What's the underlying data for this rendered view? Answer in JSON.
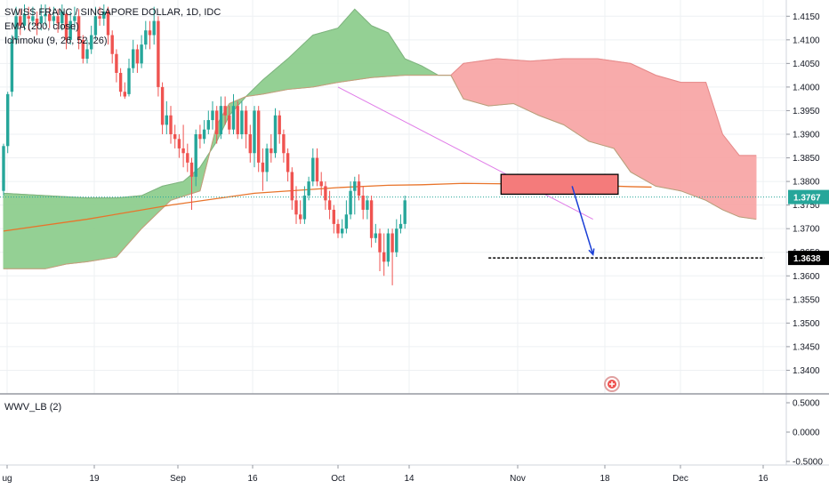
{
  "legend": {
    "symbol": "SWISS FRANC / SINGAPORE DOLLAR, 1D, IDC",
    "ema": "EMA (200, close)",
    "ichimoku": "Ichimoku (9, 26, 52, 26)"
  },
  "subpane": {
    "label": "WWV_LB (2)",
    "ticks": [
      "0.5000",
      "0.0000",
      "-0.5000"
    ]
  },
  "colors": {
    "up": "#26a69a",
    "down": "#ef5350",
    "cloud_bull": "#8fce8f",
    "cloud_bear": "#f8a7a7",
    "ema": "#e8742b",
    "trendline": "#e07ce8",
    "zone_fill": "#f47b7b",
    "arrow": "#1a3fd6",
    "current_price": "#26a69a",
    "grid": "#eef0f3",
    "axis_text": "#131722"
  },
  "icons": {
    "plus": "plus-circle-icon"
  },
  "chart_data": {
    "type": "candlestick",
    "y_ticks": [
      "1.4150",
      "1.4100",
      "1.4050",
      "1.4000",
      "1.3950",
      "1.3900",
      "1.3850",
      "1.3800",
      "1.3750",
      "1.3700",
      "1.3650",
      "1.3600",
      "1.3550",
      "1.3500",
      "1.3450",
      "1.3400"
    ],
    "y_range": [
      1.335,
      1.4175
    ],
    "x_labels": [
      "ug",
      "19",
      "Sep",
      "16",
      "Oct",
      "14",
      "Nov",
      "18",
      "Dec",
      "16"
    ],
    "current_price": {
      "label": "1.3767",
      "value": 1.3767
    },
    "target_price": {
      "label": "1.3638",
      "value": 1.3638
    },
    "candles": [
      [
        1.378,
        1.3875,
        1.388,
        1.377
      ],
      [
        1.3875,
        1.3985,
        1.399,
        1.386
      ],
      [
        1.399,
        1.41,
        1.411,
        1.398
      ],
      [
        1.41,
        1.415,
        1.417,
        1.409
      ],
      [
        1.415,
        1.413,
        1.4165,
        1.411
      ],
      [
        1.413,
        1.4155,
        1.4175,
        1.412
      ],
      [
        1.415,
        1.4145,
        1.417,
        1.412
      ],
      [
        1.414,
        1.415,
        1.417,
        1.413
      ],
      [
        1.4145,
        1.413,
        1.416,
        1.411
      ],
      [
        1.4135,
        1.415,
        1.4175,
        1.412
      ],
      [
        1.415,
        1.4155,
        1.4175,
        1.413
      ],
      [
        1.4155,
        1.414,
        1.417,
        1.4125
      ],
      [
        1.414,
        1.415,
        1.417,
        1.413
      ],
      [
        1.415,
        1.4135,
        1.4165,
        1.4115
      ],
      [
        1.4135,
        1.416,
        1.4175,
        1.412
      ],
      [
        1.4155,
        1.41,
        1.416,
        1.408
      ],
      [
        1.41,
        1.414,
        1.416,
        1.409
      ],
      [
        1.414,
        1.415,
        1.417,
        1.412
      ],
      [
        1.415,
        1.41,
        1.4165,
        1.408
      ],
      [
        1.41,
        1.406,
        1.411,
        1.405
      ],
      [
        1.406,
        1.408,
        1.41,
        1.405
      ],
      [
        1.408,
        1.411,
        1.413,
        1.407
      ],
      [
        1.411,
        1.415,
        1.417,
        1.41
      ],
      [
        1.415,
        1.4145,
        1.417,
        1.413
      ],
      [
        1.4145,
        1.416,
        1.4175,
        1.413
      ],
      [
        1.416,
        1.411,
        1.417,
        1.409
      ],
      [
        1.411,
        1.407,
        1.412,
        1.405
      ],
      [
        1.407,
        1.403,
        1.408,
        1.401
      ],
      [
        1.403,
        1.399,
        1.404,
        1.398
      ],
      [
        1.399,
        1.398,
        1.401,
        1.3975
      ],
      [
        1.3985,
        1.404,
        1.406,
        1.398
      ],
      [
        1.404,
        1.408,
        1.41,
        1.403
      ],
      [
        1.408,
        1.405,
        1.409,
        1.403
      ],
      [
        1.405,
        1.409,
        1.411,
        1.404
      ],
      [
        1.409,
        1.412,
        1.414,
        1.408
      ],
      [
        1.412,
        1.411,
        1.414,
        1.408
      ],
      [
        1.411,
        1.414,
        1.417,
        1.409
      ],
      [
        1.414,
        1.4,
        1.415,
        1.398
      ],
      [
        1.4,
        1.392,
        1.401,
        1.39
      ],
      [
        1.392,
        1.394,
        1.397,
        1.39
      ],
      [
        1.394,
        1.39,
        1.396,
        1.388
      ],
      [
        1.39,
        1.389,
        1.392,
        1.387
      ],
      [
        1.389,
        1.387,
        1.39,
        1.385
      ],
      [
        1.387,
        1.386,
        1.392,
        1.383
      ],
      [
        1.386,
        1.384,
        1.388,
        1.382
      ],
      [
        1.384,
        1.381,
        1.385,
        1.374
      ],
      [
        1.381,
        1.39,
        1.391,
        1.379
      ],
      [
        1.39,
        1.389,
        1.392,
        1.387
      ],
      [
        1.389,
        1.391,
        1.393,
        1.388
      ],
      [
        1.391,
        1.393,
        1.395,
        1.39
      ],
      [
        1.393,
        1.395,
        1.397,
        1.391
      ],
      [
        1.395,
        1.39,
        1.396,
        1.388
      ],
      [
        1.39,
        1.396,
        1.398,
        1.389
      ],
      [
        1.396,
        1.394,
        1.398,
        1.392
      ],
      [
        1.394,
        1.391,
        1.396,
        1.39
      ],
      [
        1.391,
        1.396,
        1.3985,
        1.39
      ],
      [
        1.396,
        1.39,
        1.397,
        1.389
      ],
      [
        1.39,
        1.395,
        1.397,
        1.389
      ],
      [
        1.395,
        1.39,
        1.396,
        1.387
      ],
      [
        1.39,
        1.386,
        1.392,
        1.384
      ],
      [
        1.386,
        1.395,
        1.396,
        1.383
      ],
      [
        1.395,
        1.384,
        1.396,
        1.382
      ],
      [
        1.384,
        1.382,
        1.387,
        1.378
      ],
      [
        1.382,
        1.387,
        1.388,
        1.38
      ],
      [
        1.387,
        1.386,
        1.39,
        1.384
      ],
      [
        1.386,
        1.394,
        1.3955,
        1.385
      ],
      [
        1.394,
        1.39,
        1.395,
        1.388
      ],
      [
        1.39,
        1.386,
        1.391,
        1.384
      ],
      [
        1.386,
        1.382,
        1.387,
        1.38
      ],
      [
        1.382,
        1.376,
        1.383,
        1.374
      ],
      [
        1.376,
        1.373,
        1.379,
        1.371
      ],
      [
        1.373,
        1.372,
        1.376,
        1.371
      ],
      [
        1.372,
        1.377,
        1.379,
        1.371
      ],
      [
        1.377,
        1.38,
        1.381,
        1.376
      ],
      [
        1.38,
        1.385,
        1.387,
        1.379
      ],
      [
        1.385,
        1.38,
        1.387,
        1.379
      ],
      [
        1.38,
        1.379,
        1.382,
        1.377
      ],
      [
        1.379,
        1.376,
        1.38,
        1.374
      ],
      [
        1.376,
        1.374,
        1.378,
        1.372
      ],
      [
        1.374,
        1.371,
        1.375,
        1.369
      ],
      [
        1.371,
        1.369,
        1.372,
        1.368
      ],
      [
        1.369,
        1.37,
        1.372,
        1.368
      ],
      [
        1.37,
        1.373,
        1.376,
        1.369
      ],
      [
        1.373,
        1.378,
        1.38,
        1.372
      ],
      [
        1.378,
        1.38,
        1.381,
        1.373
      ],
      [
        1.38,
        1.377,
        1.3815,
        1.376
      ],
      [
        1.377,
        1.374,
        1.379,
        1.372
      ],
      [
        1.374,
        1.376,
        1.377,
        1.372
      ],
      [
        1.376,
        1.368,
        1.377,
        1.366
      ],
      [
        1.368,
        1.369,
        1.371,
        1.367
      ],
      [
        1.369,
        1.365,
        1.37,
        1.361
      ],
      [
        1.365,
        1.363,
        1.369,
        1.36
      ],
      [
        1.363,
        1.369,
        1.37,
        1.362
      ],
      [
        1.369,
        1.365,
        1.37,
        1.358
      ],
      [
        1.365,
        1.37,
        1.372,
        1.364
      ],
      [
        1.37,
        1.371,
        1.373,
        1.369
      ],
      [
        1.371,
        1.376,
        1.377,
        1.37
      ]
    ],
    "ema_points": [
      [
        0,
        1.3695
      ],
      [
        20,
        1.372
      ],
      [
        40,
        1.375
      ],
      [
        60,
        1.3775
      ],
      [
        80,
        1.3787
      ],
      [
        92,
        1.3792
      ],
      [
        100,
        1.3793
      ],
      [
        110,
        1.3796
      ],
      [
        120,
        1.3795
      ],
      [
        130,
        1.3793
      ],
      [
        140,
        1.3792
      ],
      [
        150,
        1.3789
      ],
      [
        155,
        1.3788
      ]
    ],
    "cloud_bull": {
      "upper": [
        [
          0,
          1.3775
        ],
        [
          20,
          1.3765
        ],
        [
          27,
          1.3765
        ],
        [
          33,
          1.377
        ],
        [
          38,
          1.379
        ],
        [
          43,
          1.38
        ],
        [
          47,
          1.383
        ],
        [
          51,
          1.3885
        ],
        [
          54,
          1.394
        ],
        [
          58,
          1.398
        ],
        [
          62,
          1.4015
        ],
        [
          68,
          1.406
        ],
        [
          74,
          1.411
        ],
        [
          80,
          1.4125
        ],
        [
          84,
          1.4165
        ],
        [
          88,
          1.413
        ],
        [
          92,
          1.4115
        ],
        [
          96,
          1.406
        ],
        [
          100,
          1.4045
        ],
        [
          104,
          1.4025
        ],
        [
          107,
          1.4025
        ]
      ],
      "lower": [
        [
          0,
          1.3615
        ],
        [
          10,
          1.3615
        ],
        [
          15,
          1.3625
        ],
        [
          20,
          1.363
        ],
        [
          27,
          1.364
        ],
        [
          33,
          1.37
        ],
        [
          40,
          1.376
        ],
        [
          47,
          1.378
        ],
        [
          51,
          1.392
        ],
        [
          54,
          1.3965
        ],
        [
          58,
          1.398
        ],
        [
          62,
          1.3985
        ],
        [
          68,
          1.3995
        ],
        [
          74,
          1.4
        ],
        [
          80,
          1.401
        ],
        [
          88,
          1.402
        ],
        [
          96,
          1.4025
        ],
        [
          100,
          1.4025
        ],
        [
          104,
          1.4025
        ],
        [
          107,
          1.4025
        ]
      ]
    },
    "cloud_bear": {
      "upper": [
        [
          107,
          1.4025
        ],
        [
          110,
          1.405
        ],
        [
          118,
          1.406
        ],
        [
          126,
          1.4055
        ],
        [
          134,
          1.406
        ],
        [
          142,
          1.406
        ],
        [
          150,
          1.405
        ],
        [
          156,
          1.4025
        ],
        [
          162,
          1.401
        ],
        [
          168,
          1.401
        ],
        [
          172,
          1.39
        ],
        [
          176,
          1.3855
        ],
        [
          178,
          1.3855
        ],
        [
          180,
          1.3855
        ]
      ],
      "lower": [
        [
          107,
          1.4025
        ],
        [
          110,
          1.3975
        ],
        [
          116,
          1.396
        ],
        [
          122,
          1.3965
        ],
        [
          128,
          1.394
        ],
        [
          134,
          1.392
        ],
        [
          140,
          1.3885
        ],
        [
          146,
          1.387
        ],
        [
          150,
          1.382
        ],
        [
          156,
          1.379
        ],
        [
          162,
          1.378
        ],
        [
          168,
          1.376
        ],
        [
          172,
          1.374
        ],
        [
          176,
          1.3725
        ],
        [
          180,
          1.372
        ]
      ]
    },
    "trendline": {
      "from": [
        80,
        1.4
      ],
      "to": [
        141,
        1.372
      ]
    },
    "zone": {
      "from_x": 119,
      "to_x": 147,
      "top": 1.3815,
      "bottom": 1.3773
    },
    "target_line": {
      "from_x": 116,
      "to_x": 182
    },
    "arrow": {
      "from": [
        136,
        1.379
      ],
      "to": [
        141,
        1.3645
      ]
    }
  }
}
